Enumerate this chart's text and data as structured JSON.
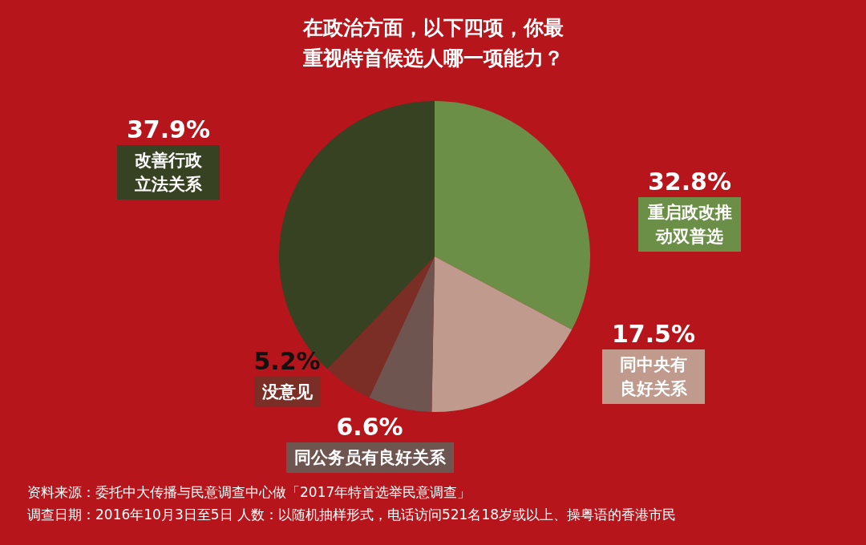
{
  "chart_data": {
    "type": "pie",
    "title": "在政治方面，以下四项，你最重视特首候选人哪一项能力？",
    "categories": [
      "重启政改推动双普选",
      "同中央有良好关系",
      "同公务员有良好关系",
      "没意见",
      "改善行政立法关系"
    ],
    "values": [
      32.8,
      17.5,
      6.6,
      5.2,
      37.9
    ],
    "value_labels": [
      "32.8%",
      "17.5%",
      "6.6%",
      "5.2%",
      "37.9%"
    ],
    "colors": [
      "#6b8f47",
      "#c09a8c",
      "#6e5550",
      "#7a2e25",
      "#374223"
    ],
    "legend": false,
    "annotations": [
      "资料来源：委托中大传播与民意调查中心做「2017年特首选举民意调查」",
      "调查日期：2016年10月3日至5日  人数：以随机抽样形式，电话访问521名18岁或以上、操粤语的香港市民"
    ]
  }
}
